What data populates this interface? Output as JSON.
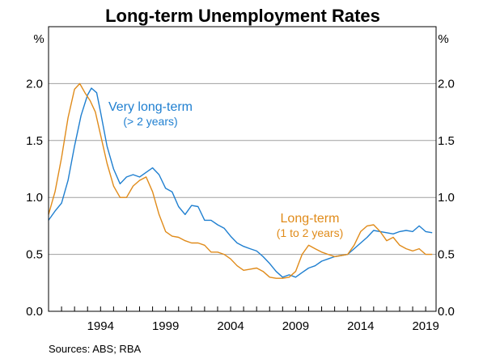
{
  "chart_data": {
    "type": "line",
    "title": "Long-term Unemployment Rates",
    "unit_left": "%",
    "unit_right": "%",
    "y_ticks": [
      "0.0",
      "0.5",
      "1.0",
      "1.5",
      "2.0"
    ],
    "x_tick_labels": [
      "1994",
      "1999",
      "2004",
      "2009",
      "2014",
      "2019"
    ],
    "ylim": [
      0,
      2.5
    ],
    "xlim": [
      1990.0,
      2019.8
    ],
    "grid": true,
    "source": "Sources:   ABS; RBA",
    "series": [
      {
        "name": "Very long-term",
        "label": "Very long-term",
        "sublabel": "(> 2 years)",
        "color": "#1f7fd0",
        "x": [
          1990.0,
          1990.5,
          1991.0,
          1991.5,
          1992.0,
          1992.5,
          1993.0,
          1993.3,
          1993.7,
          1994.0,
          1994.5,
          1995.0,
          1995.5,
          1996.0,
          1996.5,
          1997.0,
          1997.5,
          1998.0,
          1998.5,
          1999.0,
          1999.5,
          2000.0,
          2000.5,
          2001.0,
          2001.5,
          2002.0,
          2002.5,
          2003.0,
          2003.5,
          2004.0,
          2004.5,
          2005.0,
          2005.5,
          2006.0,
          2006.5,
          2007.0,
          2007.5,
          2008.0,
          2008.5,
          2009.0,
          2009.5,
          2010.0,
          2010.5,
          2011.0,
          2011.5,
          2012.0,
          2012.5,
          2013.0,
          2013.5,
          2014.0,
          2014.5,
          2015.0,
          2015.5,
          2016.0,
          2016.5,
          2017.0,
          2017.5,
          2018.0,
          2018.5,
          2019.0,
          2019.5
        ],
        "y": [
          0.8,
          0.88,
          0.95,
          1.15,
          1.45,
          1.72,
          1.9,
          1.96,
          1.92,
          1.75,
          1.45,
          1.25,
          1.12,
          1.18,
          1.2,
          1.18,
          1.22,
          1.26,
          1.2,
          1.08,
          1.05,
          0.92,
          0.85,
          0.93,
          0.92,
          0.8,
          0.8,
          0.76,
          0.73,
          0.66,
          0.6,
          0.57,
          0.55,
          0.53,
          0.48,
          0.42,
          0.35,
          0.3,
          0.32,
          0.3,
          0.34,
          0.38,
          0.4,
          0.44,
          0.46,
          0.48,
          0.49,
          0.5,
          0.55,
          0.6,
          0.65,
          0.71,
          0.7,
          0.69,
          0.68,
          0.7,
          0.71,
          0.7,
          0.75,
          0.7,
          0.69
        ]
      },
      {
        "name": "Long-term",
        "label": "Long-term",
        "sublabel": "(1 to 2 years)",
        "color": "#e08b1a",
        "x": [
          1990.0,
          1990.5,
          1991.0,
          1991.5,
          1992.0,
          1992.4,
          1992.8,
          1993.2,
          1993.6,
          1994.0,
          1994.5,
          1995.0,
          1995.5,
          1996.0,
          1996.5,
          1997.0,
          1997.5,
          1998.0,
          1998.5,
          1999.0,
          1999.5,
          2000.0,
          2000.5,
          2001.0,
          2001.5,
          2002.0,
          2002.5,
          2003.0,
          2003.5,
          2004.0,
          2004.5,
          2005.0,
          2005.5,
          2006.0,
          2006.5,
          2007.0,
          2007.5,
          2008.0,
          2008.5,
          2009.0,
          2009.5,
          2010.0,
          2010.5,
          2011.0,
          2011.5,
          2012.0,
          2012.5,
          2013.0,
          2013.5,
          2014.0,
          2014.5,
          2015.0,
          2015.5,
          2016.0,
          2016.5,
          2017.0,
          2017.5,
          2018.0,
          2018.5,
          2019.0,
          2019.5
        ],
        "y": [
          0.85,
          1.05,
          1.35,
          1.7,
          1.95,
          2.0,
          1.92,
          1.85,
          1.75,
          1.55,
          1.3,
          1.1,
          1.0,
          1.0,
          1.1,
          1.15,
          1.18,
          1.05,
          0.85,
          0.7,
          0.66,
          0.65,
          0.62,
          0.6,
          0.6,
          0.58,
          0.52,
          0.52,
          0.5,
          0.46,
          0.4,
          0.36,
          0.37,
          0.38,
          0.35,
          0.3,
          0.29,
          0.29,
          0.3,
          0.35,
          0.5,
          0.58,
          0.55,
          0.52,
          0.5,
          0.48,
          0.49,
          0.5,
          0.58,
          0.7,
          0.75,
          0.76,
          0.7,
          0.62,
          0.65,
          0.58,
          0.55,
          0.53,
          0.55,
          0.5,
          0.5
        ]
      }
    ]
  }
}
